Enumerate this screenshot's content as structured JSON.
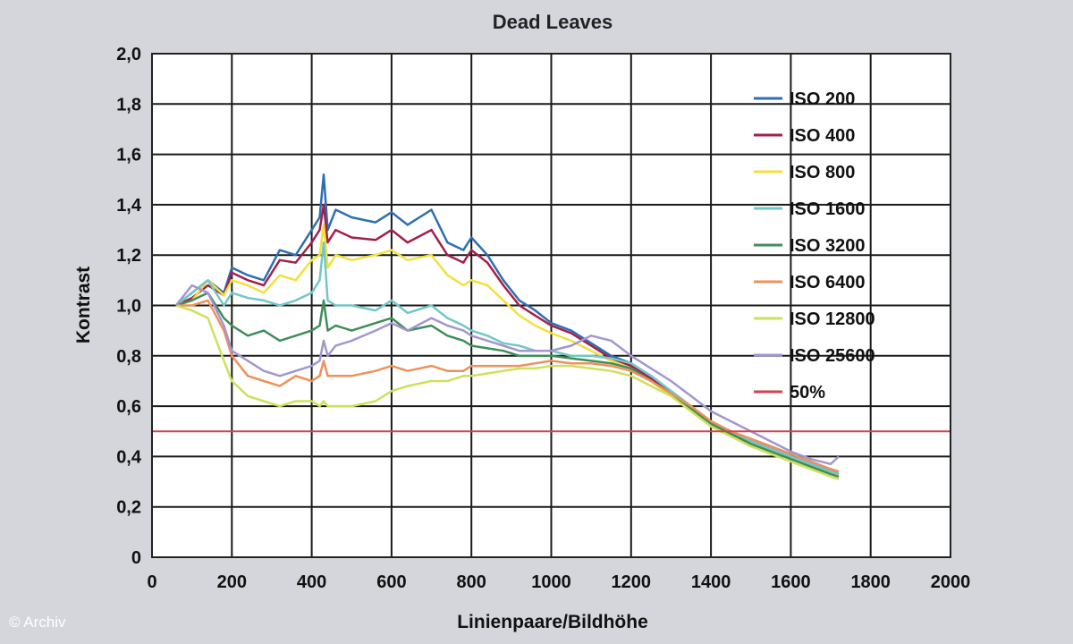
{
  "credit": "© Archiv",
  "chart_data": {
    "type": "line",
    "title": "Dead Leaves",
    "xlabel": "Linienpaare/Bildhöhe",
    "ylabel": "Kontrast",
    "xlim": [
      0,
      2000
    ],
    "ylim": [
      0,
      2.0
    ],
    "xticks": [
      0,
      200,
      400,
      600,
      800,
      1000,
      1200,
      1400,
      1600,
      1800,
      2000
    ],
    "xtick_labels": [
      "0",
      "200",
      "400",
      "600",
      "800",
      "1000",
      "1200",
      "1400",
      "1600",
      "1800",
      "2000"
    ],
    "yticks": [
      0,
      0.2,
      0.4,
      0.6,
      0.8,
      1.0,
      1.2,
      1.4,
      1.6,
      1.8,
      2.0
    ],
    "ytick_labels": [
      "0",
      "0,2",
      "0,4",
      "0,6",
      "0,8",
      "1,0",
      "1,2",
      "1,4",
      "1,6",
      "1,8",
      "2,0"
    ],
    "grid": true,
    "legend_position": "top-right",
    "series": [
      {
        "name": "ISO 200",
        "color": "#2e6fb3",
        "x": [
          60,
          100,
          140,
          180,
          200,
          240,
          280,
          320,
          360,
          400,
          420,
          430,
          440,
          460,
          500,
          560,
          600,
          640,
          700,
          740,
          780,
          800,
          840,
          880,
          920,
          960,
          1000,
          1050,
          1100,
          1150,
          1200,
          1250,
          1300,
          1350,
          1400,
          1450,
          1500,
          1550,
          1600,
          1650,
          1700,
          1720
        ],
        "y": [
          1.0,
          1.05,
          1.1,
          1.05,
          1.15,
          1.12,
          1.1,
          1.22,
          1.2,
          1.3,
          1.35,
          1.52,
          1.3,
          1.38,
          1.35,
          1.33,
          1.37,
          1.32,
          1.38,
          1.25,
          1.22,
          1.27,
          1.2,
          1.1,
          1.02,
          0.98,
          0.93,
          0.9,
          0.85,
          0.8,
          0.77,
          0.72,
          0.66,
          0.6,
          0.54,
          0.5,
          0.47,
          0.44,
          0.41,
          0.38,
          0.35,
          0.34
        ]
      },
      {
        "name": "ISO 400",
        "color": "#a3204a",
        "x": [
          60,
          100,
          140,
          180,
          200,
          240,
          280,
          320,
          360,
          400,
          420,
          430,
          440,
          460,
          500,
          560,
          600,
          640,
          700,
          740,
          780,
          800,
          840,
          880,
          920,
          960,
          1000,
          1050,
          1100,
          1150,
          1200,
          1250,
          1300,
          1350,
          1400,
          1450,
          1500,
          1550,
          1600,
          1650,
          1700,
          1720
        ],
        "y": [
          1.0,
          1.03,
          1.08,
          1.04,
          1.13,
          1.1,
          1.08,
          1.18,
          1.17,
          1.25,
          1.3,
          1.4,
          1.25,
          1.3,
          1.27,
          1.26,
          1.3,
          1.25,
          1.3,
          1.2,
          1.17,
          1.22,
          1.17,
          1.08,
          1.0,
          0.96,
          0.92,
          0.89,
          0.84,
          0.79,
          0.76,
          0.71,
          0.65,
          0.59,
          0.53,
          0.49,
          0.46,
          0.43,
          0.4,
          0.37,
          0.34,
          0.33
        ]
      },
      {
        "name": "ISO 800",
        "color": "#f2e13b",
        "x": [
          60,
          100,
          140,
          180,
          200,
          240,
          280,
          320,
          360,
          400,
          420,
          430,
          440,
          460,
          500,
          560,
          600,
          640,
          700,
          740,
          780,
          800,
          840,
          880,
          920,
          960,
          1000,
          1050,
          1100,
          1150,
          1200,
          1250,
          1300,
          1350,
          1400,
          1450,
          1500,
          1550,
          1600,
          1650,
          1700,
          1720
        ],
        "y": [
          1.0,
          1.02,
          1.1,
          1.04,
          1.1,
          1.08,
          1.05,
          1.12,
          1.1,
          1.18,
          1.2,
          1.32,
          1.15,
          1.2,
          1.18,
          1.2,
          1.22,
          1.18,
          1.2,
          1.12,
          1.08,
          1.1,
          1.08,
          1.02,
          0.96,
          0.92,
          0.89,
          0.86,
          0.82,
          0.78,
          0.75,
          0.7,
          0.64,
          0.58,
          0.52,
          0.48,
          0.45,
          0.42,
          0.39,
          0.36,
          0.33,
          0.32
        ]
      },
      {
        "name": "ISO 1600",
        "color": "#73c7c7",
        "x": [
          60,
          100,
          140,
          180,
          200,
          240,
          280,
          320,
          360,
          400,
          420,
          430,
          440,
          460,
          500,
          560,
          600,
          640,
          700,
          740,
          780,
          800,
          840,
          880,
          920,
          960,
          1000,
          1050,
          1100,
          1150,
          1200,
          1250,
          1300,
          1350,
          1400,
          1450,
          1500,
          1550,
          1600,
          1650,
          1700,
          1720
        ],
        "y": [
          1.0,
          1.05,
          1.1,
          1.0,
          1.05,
          1.03,
          1.02,
          1.0,
          1.02,
          1.05,
          1.1,
          1.25,
          1.02,
          1.0,
          1.0,
          0.98,
          1.02,
          0.97,
          1.0,
          0.95,
          0.92,
          0.9,
          0.88,
          0.85,
          0.84,
          0.82,
          0.82,
          0.8,
          0.8,
          0.79,
          0.77,
          0.72,
          0.66,
          0.6,
          0.54,
          0.5,
          0.46,
          0.43,
          0.4,
          0.37,
          0.34,
          0.33
        ]
      },
      {
        "name": "ISO 3200",
        "color": "#3f8e5a",
        "x": [
          60,
          100,
          140,
          180,
          200,
          240,
          280,
          320,
          360,
          400,
          420,
          430,
          440,
          460,
          500,
          560,
          600,
          640,
          700,
          740,
          780,
          800,
          840,
          880,
          920,
          960,
          1000,
          1050,
          1100,
          1150,
          1200,
          1250,
          1300,
          1350,
          1400,
          1450,
          1500,
          1550,
          1600,
          1650,
          1700,
          1720
        ],
        "y": [
          1.0,
          1.02,
          1.05,
          0.95,
          0.92,
          0.88,
          0.9,
          0.86,
          0.88,
          0.9,
          0.92,
          1.02,
          0.9,
          0.92,
          0.9,
          0.93,
          0.95,
          0.9,
          0.92,
          0.88,
          0.86,
          0.84,
          0.83,
          0.82,
          0.8,
          0.8,
          0.8,
          0.79,
          0.78,
          0.77,
          0.75,
          0.7,
          0.65,
          0.59,
          0.53,
          0.49,
          0.45,
          0.42,
          0.39,
          0.36,
          0.33,
          0.32
        ]
      },
      {
        "name": "ISO 6400",
        "color": "#ee915a",
        "x": [
          60,
          100,
          140,
          180,
          200,
          240,
          280,
          320,
          360,
          400,
          420,
          430,
          440,
          460,
          500,
          560,
          600,
          640,
          700,
          740,
          780,
          800,
          840,
          880,
          920,
          960,
          1000,
          1050,
          1100,
          1150,
          1200,
          1250,
          1300,
          1350,
          1400,
          1450,
          1500,
          1550,
          1600,
          1650,
          1700,
          1720
        ],
        "y": [
          1.0,
          1.0,
          1.02,
          0.9,
          0.8,
          0.72,
          0.7,
          0.68,
          0.72,
          0.7,
          0.72,
          0.78,
          0.72,
          0.72,
          0.72,
          0.74,
          0.76,
          0.74,
          0.76,
          0.74,
          0.74,
          0.76,
          0.76,
          0.76,
          0.76,
          0.77,
          0.78,
          0.77,
          0.77,
          0.76,
          0.74,
          0.7,
          0.65,
          0.6,
          0.54,
          0.5,
          0.47,
          0.44,
          0.41,
          0.38,
          0.35,
          0.34
        ]
      },
      {
        "name": "ISO 12800",
        "color": "#cfe05a",
        "x": [
          60,
          100,
          140,
          180,
          200,
          240,
          280,
          320,
          360,
          400,
          420,
          430,
          440,
          460,
          500,
          560,
          600,
          640,
          700,
          740,
          780,
          800,
          840,
          880,
          920,
          960,
          1000,
          1050,
          1100,
          1150,
          1200,
          1250,
          1300,
          1350,
          1400,
          1450,
          1500,
          1550,
          1600,
          1650,
          1700,
          1720
        ],
        "y": [
          1.0,
          0.98,
          0.95,
          0.78,
          0.7,
          0.64,
          0.62,
          0.6,
          0.62,
          0.62,
          0.6,
          0.62,
          0.6,
          0.6,
          0.6,
          0.62,
          0.66,
          0.68,
          0.7,
          0.7,
          0.72,
          0.72,
          0.73,
          0.74,
          0.75,
          0.75,
          0.76,
          0.76,
          0.75,
          0.74,
          0.72,
          0.68,
          0.64,
          0.58,
          0.52,
          0.48,
          0.44,
          0.41,
          0.38,
          0.35,
          0.32,
          0.31
        ]
      },
      {
        "name": "ISO 25600",
        "color": "#a396d0",
        "x": [
          60,
          100,
          140,
          180,
          200,
          240,
          280,
          320,
          360,
          400,
          420,
          430,
          440,
          460,
          500,
          560,
          600,
          640,
          700,
          740,
          780,
          800,
          840,
          880,
          920,
          960,
          1000,
          1050,
          1100,
          1150,
          1200,
          1250,
          1300,
          1350,
          1400,
          1450,
          1500,
          1550,
          1600,
          1650,
          1700,
          1720
        ],
        "y": [
          1.0,
          1.08,
          1.05,
          0.92,
          0.82,
          0.78,
          0.74,
          0.72,
          0.74,
          0.76,
          0.78,
          0.86,
          0.8,
          0.84,
          0.86,
          0.9,
          0.93,
          0.9,
          0.95,
          0.92,
          0.9,
          0.88,
          0.86,
          0.84,
          0.82,
          0.82,
          0.82,
          0.84,
          0.88,
          0.86,
          0.8,
          0.75,
          0.7,
          0.64,
          0.58,
          0.54,
          0.5,
          0.46,
          0.42,
          0.39,
          0.37,
          0.4
        ]
      },
      {
        "name": "50%",
        "color": "#d0434f",
        "x": [
          0,
          2000
        ],
        "y": [
          0.5,
          0.5
        ]
      }
    ]
  }
}
